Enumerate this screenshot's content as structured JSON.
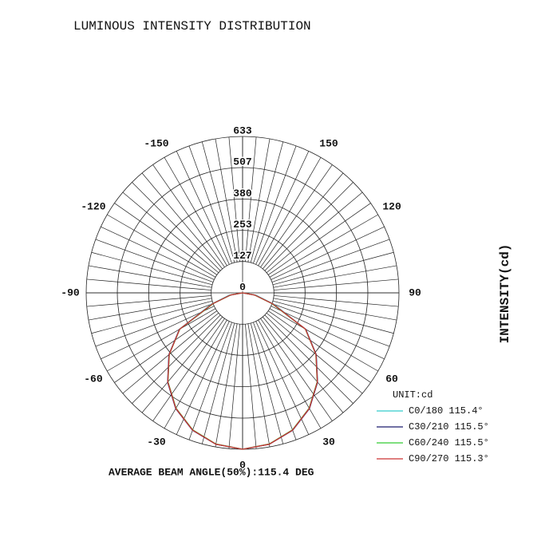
{
  "chart_data": {
    "type": "polar",
    "title": "LUMINOUS INTENSITY DISTRIBUTION",
    "footer": "AVERAGE BEAM ANGLE(50%):115.4 DEG",
    "axis_label": "INTENSITY(cd)",
    "unit": "UNIT:cd",
    "rlim": [
      0,
      633
    ],
    "rticks": [
      0,
      127,
      253,
      380,
      507,
      633
    ],
    "angle_ticks": [
      0,
      30,
      60,
      90,
      120,
      150,
      -30,
      -60,
      -90,
      -120,
      -150
    ],
    "angles": [
      -90,
      -80,
      -70,
      -60,
      -50,
      -40,
      -30,
      -20,
      -10,
      0,
      10,
      20,
      30,
      40,
      50,
      60,
      70,
      80,
      90
    ],
    "series": [
      {
        "name": "C0/180 115.4°",
        "color": "#33cccc",
        "values": [
          0,
          55,
          135,
          295,
          389,
          472,
          540,
          591,
          622,
          633,
          622,
          591,
          540,
          472,
          389,
          295,
          135,
          55,
          0
        ]
      },
      {
        "name": "C30/210 115.5°",
        "color": "#1a1a6e",
        "values": [
          0,
          50,
          128,
          295,
          389,
          472,
          541,
          592,
          622,
          633,
          622,
          592,
          541,
          472,
          389,
          295,
          128,
          50,
          0
        ]
      },
      {
        "name": "C60/240 115.5°",
        "color": "#33cc33",
        "values": [
          0,
          48,
          125,
          293,
          387,
          470,
          539,
          590,
          621,
          633,
          621,
          590,
          539,
          470,
          387,
          293,
          125,
          48,
          0
        ]
      },
      {
        "name": "C90/270 115.3°",
        "color": "#cc3333",
        "values": [
          0,
          50,
          130,
          294,
          388,
          471,
          540,
          591,
          622,
          633,
          622,
          591,
          540,
          471,
          388,
          294,
          130,
          50,
          0
        ]
      }
    ]
  }
}
